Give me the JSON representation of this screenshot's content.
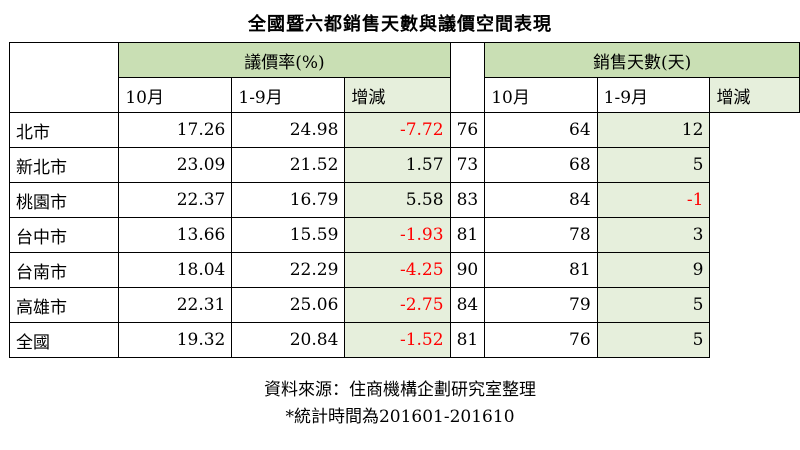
{
  "title": "全國暨六都銷售天數與議價空間表現",
  "groups": {
    "bargain": "議價率(%)",
    "days": "銷售天數(天)"
  },
  "sub_headers": {
    "oct": "10月",
    "ytd": "1-9月",
    "chg": "增減"
  },
  "rows": [
    {
      "city": "北市",
      "b_oct": "17.26",
      "b_ytd": "24.98",
      "b_chg": "-7.72",
      "d_oct": "76",
      "d_ytd": "64",
      "d_chg": "12"
    },
    {
      "city": "新北市",
      "b_oct": "23.09",
      "b_ytd": "21.52",
      "b_chg": "1.57",
      "d_oct": "73",
      "d_ytd": "68",
      "d_chg": "5"
    },
    {
      "city": "桃園市",
      "b_oct": "22.37",
      "b_ytd": "16.79",
      "b_chg": "5.58",
      "d_oct": "83",
      "d_ytd": "84",
      "d_chg": "-1"
    },
    {
      "city": "台中市",
      "b_oct": "13.66",
      "b_ytd": "15.59",
      "b_chg": "-1.93",
      "d_oct": "81",
      "d_ytd": "78",
      "d_chg": "3"
    },
    {
      "city": "台南市",
      "b_oct": "18.04",
      "b_ytd": "22.29",
      "b_chg": "-4.25",
      "d_oct": "90",
      "d_ytd": "81",
      "d_chg": "9"
    },
    {
      "city": "高雄市",
      "b_oct": "22.31",
      "b_ytd": "25.06",
      "b_chg": "-2.75",
      "d_oct": "84",
      "d_ytd": "79",
      "d_chg": "5"
    },
    {
      "city": "全國",
      "b_oct": "19.32",
      "b_ytd": "20.84",
      "b_chg": "-1.52",
      "d_oct": "81",
      "d_ytd": "76",
      "d_chg": "5"
    }
  ],
  "footer": {
    "source": "資料來源：住商機構企劃研究室整理",
    "note": "*統計時間為201601-201610"
  },
  "colors": {
    "group_header": "#c9dfb4",
    "change_cell": "#e6efdc",
    "negative": "#ff0000"
  }
}
